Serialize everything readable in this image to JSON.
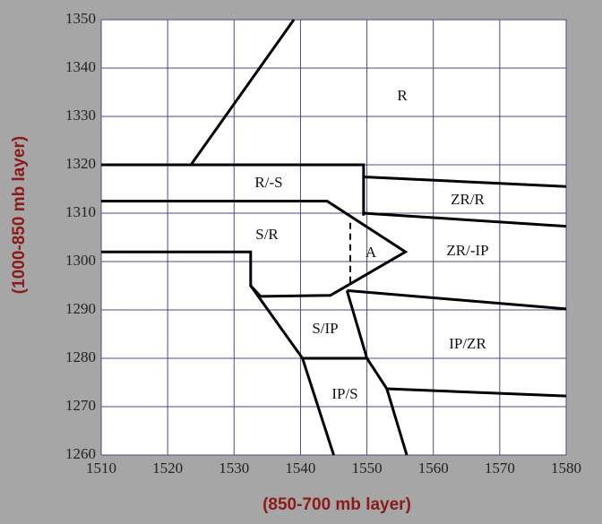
{
  "chart_data": {
    "type": "line",
    "x_label": "(850-700 mb layer)",
    "y_label": "(1000-850 mb layer)",
    "xlim": [
      1510,
      1580
    ],
    "xticks": [
      1510,
      1520,
      1530,
      1540,
      1550,
      1560,
      1570,
      1580
    ],
    "ylim": [
      1260,
      1350
    ],
    "yticks": [
      1260,
      1270,
      1280,
      1290,
      1300,
      1310,
      1320,
      1330,
      1340,
      1350
    ],
    "grid": true,
    "grid_color": "#4a4a88",
    "color": "#000000",
    "regions": [
      "R",
      "R/-S",
      "ZR/R",
      "S/R",
      "A",
      "ZR/-IP",
      "S/IP",
      "IP/ZR",
      "IP/S"
    ],
    "boundaries": [
      {
        "x": [
          1523.5,
          1539
        ],
        "y": [
          1320,
          1350
        ]
      },
      {
        "x": [
          1510,
          1549.5,
          1549.5
        ],
        "y": [
          1320,
          1320,
          1309.5
        ]
      },
      {
        "x": [
          1549.5,
          1580
        ],
        "y": [
          1317.5,
          1315.5
        ]
      },
      {
        "x": [
          1549.5,
          1580
        ],
        "y": [
          1310,
          1307.3
        ]
      },
      {
        "x": [
          1510,
          1544,
          1555.8,
          1544.5,
          1534,
          1532.5,
          1532.5,
          1510
        ],
        "y": [
          1312.5,
          1312.5,
          1302,
          1293,
          1292.8,
          1295,
          1302,
          1302
        ]
      },
      {
        "x": [
          1547.5,
          1547.5
        ],
        "y": [
          1308,
          1295.5
        ],
        "dashed": true
      },
      {
        "x": [
          1532.5,
          1540.3,
          1545
        ],
        "y": [
          1295,
          1280,
          1260
        ]
      },
      {
        "x": [
          1547,
          1580
        ],
        "y": [
          1294,
          1290.2
        ]
      },
      {
        "x": [
          1547,
          1550,
          1553,
          1556
        ],
        "y": [
          1294,
          1280,
          1273.7,
          1260
        ]
      },
      {
        "x": [
          1540.3,
          1550
        ],
        "y": [
          1280,
          1280
        ]
      },
      {
        "x": [
          1553,
          1580
        ],
        "y": [
          1273.7,
          1272.2
        ]
      }
    ]
  }
}
